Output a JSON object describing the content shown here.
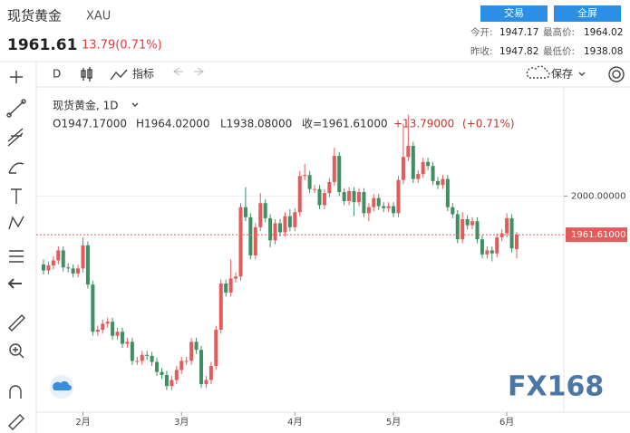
{
  "header": {
    "title": "现货黄金",
    "symbol": "XAU",
    "price": "1961.61",
    "change": "13.79(0.71%)",
    "buttons": [
      "交易",
      "全屏"
    ],
    "stats": [
      [
        "今开:",
        "1947.17"
      ],
      [
        "最高价:",
        "1964.02"
      ],
      [
        "昨收:",
        "1947.82"
      ],
      [
        "最低价:",
        "1938.08"
      ]
    ]
  },
  "toolbar": {
    "interval": "D",
    "indicators": "指标",
    "save": "保存"
  },
  "legend": {
    "name": "现货黄金, 1D",
    "items": [
      "O1947.17000",
      "H1964.02000",
      "L1938.08000",
      "收=1961.61000"
    ],
    "change": "+13.79000",
    "change_pct": "(+0.71%)"
  },
  "watermark": "FX168",
  "chart_data": {
    "type": "candlestick",
    "categories": [
      null,
      null,
      null,
      null,
      null,
      null,
      null,
      null,
      "2月",
      null,
      null,
      null,
      null,
      null,
      null,
      null,
      null,
      null,
      null,
      null,
      null,
      null,
      null,
      null,
      null,
      null,
      null,
      null,
      "3月",
      null,
      null,
      null,
      null,
      null,
      null,
      null,
      null,
      null,
      null,
      null,
      null,
      null,
      null,
      null,
      null,
      null,
      null,
      null,
      null,
      null,
      null,
      "4月",
      null,
      null,
      null,
      null,
      null,
      null,
      null,
      null,
      null,
      null,
      null,
      null,
      null,
      null,
      null,
      null,
      null,
      null,
      null,
      "5月",
      null,
      null,
      null,
      null,
      null,
      null,
      null,
      null,
      null,
      null,
      null,
      null,
      null,
      null,
      null,
      null,
      null,
      null,
      null,
      null,
      null,
      null,
      "6月",
      null,
      null
    ],
    "candles": [
      [
        1932,
        1937,
        1922,
        1926
      ],
      [
        1926,
        1935,
        1922,
        1931
      ],
      [
        1931,
        1940,
        1927,
        1936
      ],
      [
        1936,
        1950,
        1932,
        1946
      ],
      [
        1946,
        1950,
        1925,
        1929
      ],
      [
        1929,
        1933,
        1924,
        1928
      ],
      [
        1928,
        1932,
        1919,
        1923
      ],
      [
        1923,
        1932,
        1919,
        1928
      ],
      [
        1928,
        1959,
        1924,
        1951
      ],
      [
        1951,
        1955,
        1908,
        1912
      ],
      [
        1912,
        1916,
        1861,
        1865
      ],
      [
        1865,
        1871,
        1861,
        1867
      ],
      [
        1867,
        1877,
        1863,
        1873
      ],
      [
        1873,
        1879,
        1869,
        1875
      ],
      [
        1875,
        1879,
        1857,
        1861
      ],
      [
        1861,
        1869,
        1857,
        1865
      ],
      [
        1865,
        1869,
        1849,
        1853
      ],
      [
        1853,
        1859,
        1849,
        1855
      ],
      [
        1855,
        1859,
        1832,
        1836
      ],
      [
        1836,
        1840,
        1832,
        1836
      ],
      [
        1836,
        1846,
        1832,
        1842
      ],
      [
        1842,
        1846,
        1837,
        1841
      ],
      [
        1841,
        1845,
        1831,
        1835
      ],
      [
        1835,
        1839,
        1821,
        1825
      ],
      [
        1825,
        1829,
        1818,
        1822
      ],
      [
        1822,
        1826,
        1807,
        1811
      ],
      [
        1811,
        1821,
        1807,
        1817
      ],
      [
        1817,
        1831,
        1813,
        1827
      ],
      [
        1827,
        1840,
        1823,
        1836
      ],
      [
        1836,
        1840,
        1832,
        1836
      ],
      [
        1836,
        1859,
        1832,
        1855
      ],
      [
        1855,
        1859,
        1843,
        1847
      ],
      [
        1847,
        1851,
        1809,
        1813
      ],
      [
        1813,
        1821,
        1809,
        1817
      ],
      [
        1817,
        1835,
        1813,
        1831
      ],
      [
        1831,
        1871,
        1827,
        1867
      ],
      [
        1867,
        1917,
        1863,
        1913
      ],
      [
        1913,
        1917,
        1900,
        1904
      ],
      [
        1904,
        1937,
        1900,
        1918
      ],
      [
        1918,
        1924,
        1914,
        1920
      ],
      [
        1920,
        1993,
        1916,
        1989
      ],
      [
        1989,
        2009,
        1975,
        1979
      ],
      [
        1979,
        1983,
        1937,
        1941
      ],
      [
        1941,
        1973,
        1937,
        1969
      ],
      [
        1969,
        2003,
        1965,
        1993
      ],
      [
        1993,
        1997,
        1974,
        1978
      ],
      [
        1978,
        1982,
        1949,
        1956
      ],
      [
        1956,
        1977,
        1952,
        1973
      ],
      [
        1973,
        1977,
        1960,
        1964
      ],
      [
        1964,
        1984,
        1960,
        1980
      ],
      [
        1980,
        1987,
        1965,
        1969
      ],
      [
        1969,
        1988,
        1965,
        1984
      ],
      [
        1984,
        2025,
        1980,
        2020
      ],
      [
        2020,
        2032,
        2016,
        2021
      ],
      [
        2021,
        2025,
        2003,
        2007
      ],
      [
        2007,
        2011,
        2003,
        2007
      ],
      [
        2007,
        2011,
        1987,
        1991
      ],
      [
        1991,
        2007,
        1987,
        2003
      ],
      [
        2003,
        2018,
        1999,
        2014
      ],
      [
        2014,
        2048,
        2010,
        2040
      ],
      [
        2040,
        2044,
        2000,
        2004
      ],
      [
        2004,
        2008,
        1991,
        1995
      ],
      [
        1995,
        2009,
        1991,
        2005
      ],
      [
        2005,
        2009,
        1980,
        1994
      ],
      [
        1994,
        2008,
        1990,
        2004
      ],
      [
        2004,
        2008,
        1979,
        1983
      ],
      [
        1983,
        1993,
        1975,
        1989
      ],
      [
        1989,
        2002,
        1985,
        1998
      ],
      [
        1998,
        2002,
        1986,
        1990
      ],
      [
        1990,
        1994,
        1984,
        1988
      ],
      [
        1988,
        1994,
        1984,
        1990
      ],
      [
        1990,
        1994,
        1979,
        1983
      ],
      [
        1983,
        2020,
        1979,
        2016
      ],
      [
        2016,
        2072,
        2012,
        2039
      ],
      [
        2039,
        2081,
        2035,
        2050
      ],
      [
        2050,
        2054,
        2013,
        2017
      ],
      [
        2017,
        2026,
        2013,
        2022
      ],
      [
        2022,
        2038,
        2018,
        2034
      ],
      [
        2034,
        2038,
        2026,
        2030
      ],
      [
        2030,
        2034,
        2011,
        2015
      ],
      [
        2015,
        2019,
        2007,
        2011
      ],
      [
        2011,
        2021,
        2007,
        2017
      ],
      [
        2017,
        2021,
        1985,
        1989
      ],
      [
        1989,
        1993,
        1978,
        1982
      ],
      [
        1982,
        1986,
        1953,
        1957
      ],
      [
        1957,
        1984,
        1953,
        1977
      ],
      [
        1977,
        1981,
        1967,
        1971
      ],
      [
        1971,
        1979,
        1967,
        1975
      ],
      [
        1975,
        1979,
        1953,
        1957
      ],
      [
        1957,
        1961,
        1938,
        1942
      ],
      [
        1942,
        1950,
        1938,
        1946
      ],
      [
        1946,
        1950,
        1935,
        1943
      ],
      [
        1943,
        1963,
        1939,
        1959
      ],
      [
        1959,
        1967,
        1955,
        1963
      ],
      [
        1963,
        1983,
        1959,
        1978
      ],
      [
        1978,
        1982,
        1944,
        1948
      ],
      [
        1947.17,
        1964.02,
        1938.08,
        1961.61
      ]
    ],
    "up_color": "#e25c5c",
    "down_color": "#3f8f63",
    "ylim": [
      1785,
      2105
    ],
    "yticks": [
      {
        "value": 2000,
        "label": "2000.00000"
      }
    ],
    "last_price": {
      "value": 1961.61,
      "label": "1961.61000"
    },
    "grid": true
  }
}
